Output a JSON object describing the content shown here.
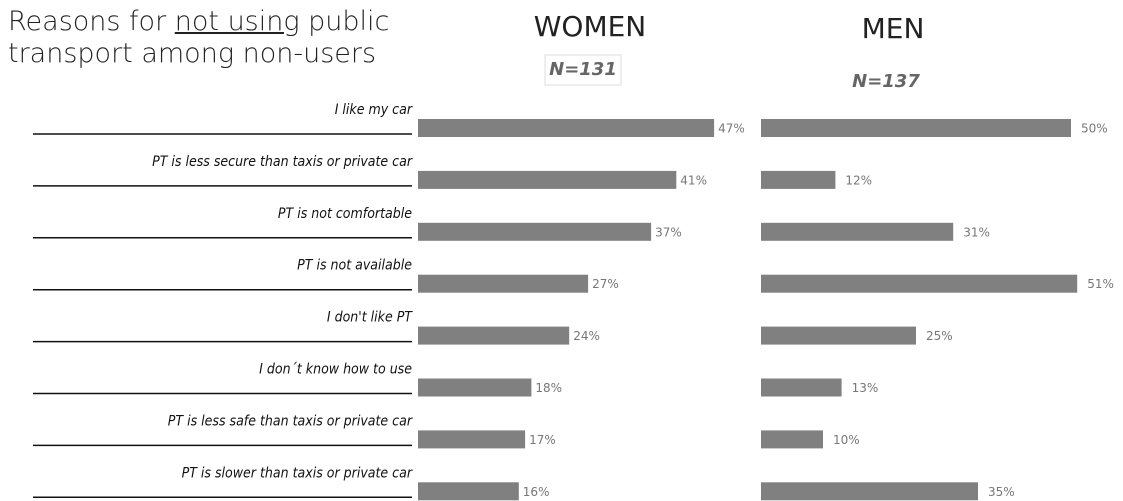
{
  "title_parts": [
    "Reasons for ",
    "not using",
    " public transport among non-users"
  ],
  "chart_data": [
    {
      "type": "bar",
      "title": "WOMEN",
      "subtitle": "N=131",
      "color": "#808080",
      "categories": [
        "I like my car",
        "PT is less secure than taxis or private car",
        "PT is not comfortable",
        "PT is not available",
        "I don't like PT",
        "I don´t know how to use",
        "PT is less safe than taxis or private car",
        "PT is slower than taxis or private car"
      ],
      "values": [
        47,
        41,
        37,
        27,
        24,
        18,
        17,
        16
      ],
      "value_labels": [
        "47%",
        "41%",
        "37%",
        "27%",
        "24%",
        "18%",
        "17%",
        "16%"
      ]
    },
    {
      "type": "bar",
      "title": "MEN",
      "subtitle": "N=137",
      "color": "#808080",
      "values": [
        50,
        12,
        31,
        51,
        25,
        13,
        10,
        35
      ],
      "value_labels": [
        "50%",
        "12%",
        "31%",
        "51%",
        "25%",
        "13%",
        "10%",
        "35%"
      ]
    }
  ]
}
